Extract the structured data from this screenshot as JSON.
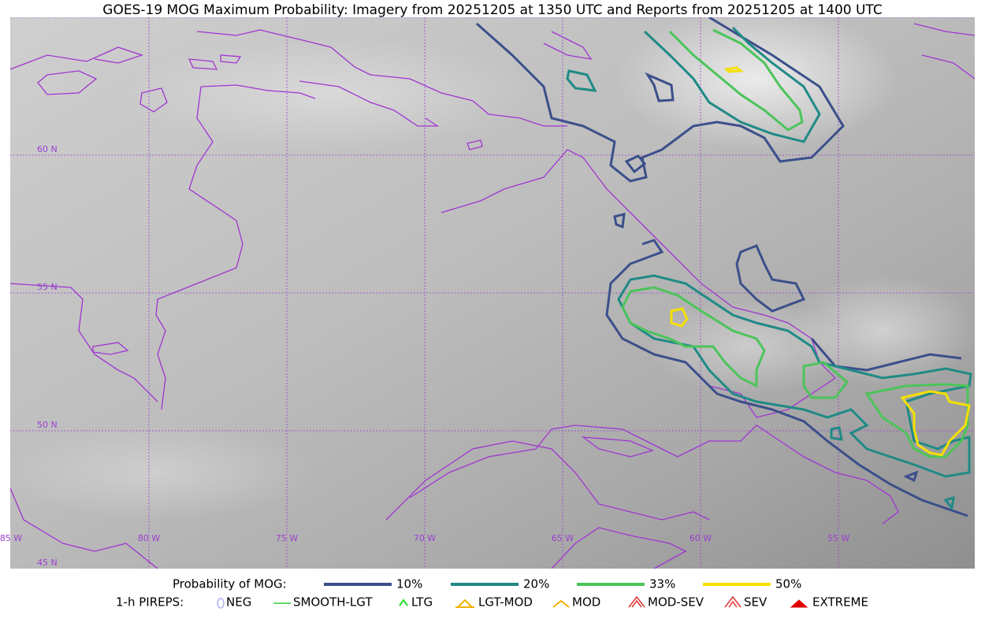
{
  "title": "GOES-19 MOG Maximum Probability: Imagery from 20251205 at 1350 UTC and Reports from 20251205 at 1400 UTC",
  "map": {
    "lat_labels": [
      "60 N",
      "55 N",
      "50 N",
      "45 N"
    ],
    "lon_labels": [
      "85 W",
      "80 W",
      "75 W",
      "70 W",
      "65 W",
      "60 W",
      "55 W"
    ]
  },
  "legend": {
    "probability": {
      "label": "Probability of MOG:",
      "items": [
        {
          "label": "10%",
          "color": "#3b4f8a"
        },
        {
          "label": "20%",
          "color": "#1f8a86"
        },
        {
          "label": "33%",
          "color": "#4cc45a"
        },
        {
          "label": "50%",
          "color": "#f5e000"
        }
      ]
    },
    "pireps": {
      "label": "1-h PIREPS:",
      "items": [
        {
          "label": "NEG",
          "color": "#b0b0f0"
        },
        {
          "label": "SMOOTH-LGT",
          "color": "#33cc33"
        },
        {
          "label": "LTG",
          "color": "#22dd22"
        },
        {
          "label": "LGT-MOD",
          "color": "#f0b000"
        },
        {
          "label": "MOD",
          "color": "#f0b000"
        },
        {
          "label": "MOD-SEV",
          "color": "#e03030"
        },
        {
          "label": "SEV",
          "color": "#e03030"
        },
        {
          "label": "EXTREME",
          "color": "#e00000"
        }
      ]
    }
  }
}
